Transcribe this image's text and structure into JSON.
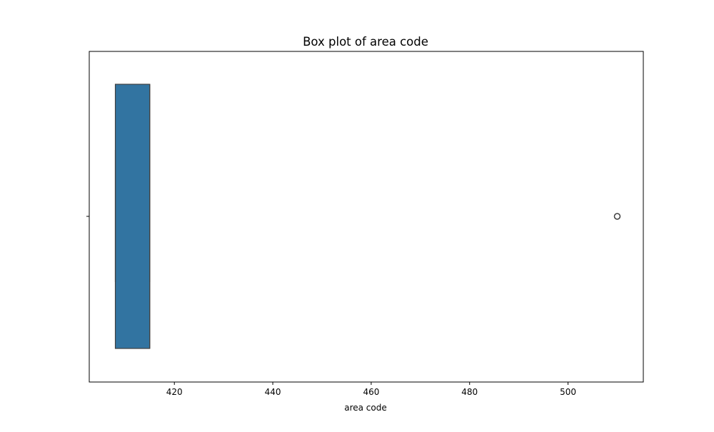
{
  "chart_data": {
    "type": "box",
    "title": "Box plot of area code",
    "xlabel": "area code",
    "ylabel": "",
    "orientation": "horizontal",
    "xlim": [
      402.7,
      515.3
    ],
    "xticks": [
      420,
      440,
      460,
      480,
      500
    ],
    "xtick_labels": [
      "420",
      "440",
      "460",
      "480",
      "500"
    ],
    "grid": false,
    "legend": "none",
    "series": [
      {
        "min": 408,
        "q1": 408,
        "median": 415,
        "q3": 415,
        "max": 415,
        "outliers": [
          510
        ],
        "color": "#3274a1"
      }
    ]
  }
}
